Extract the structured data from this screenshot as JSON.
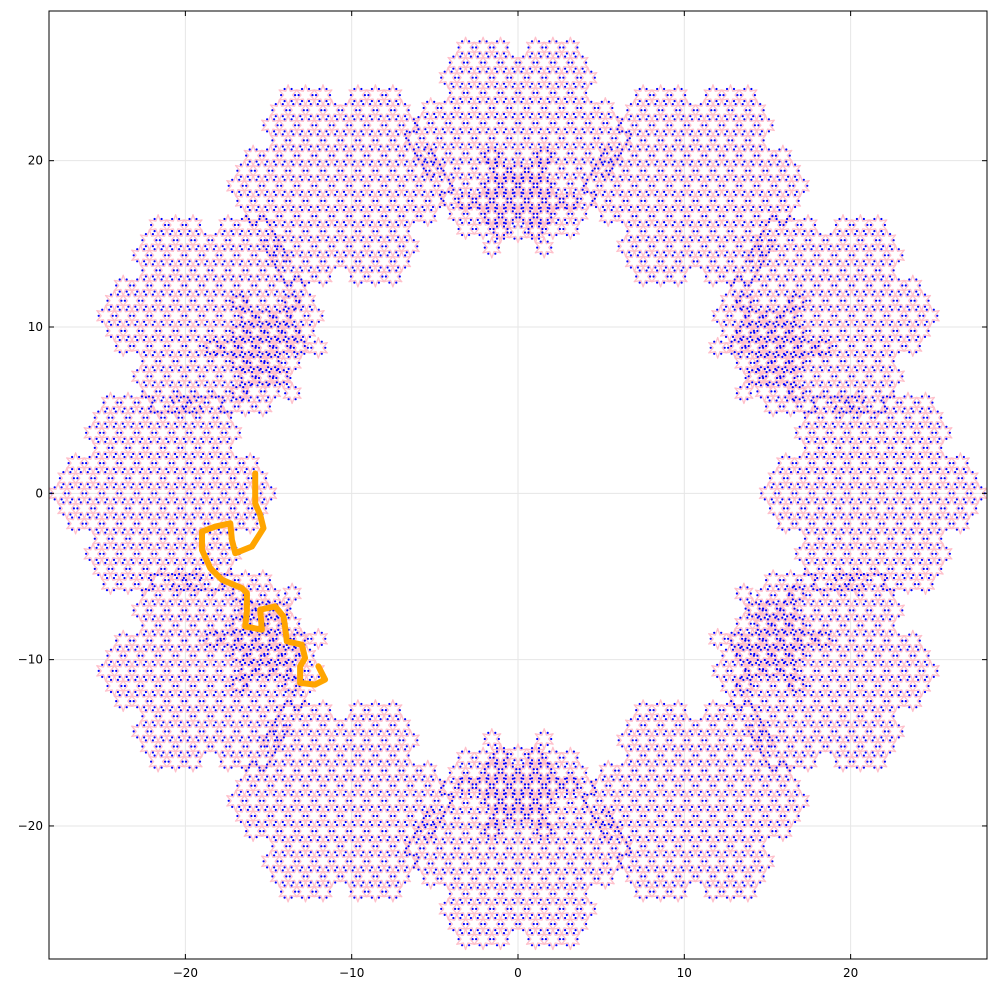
{
  "chart_data": {
    "type": "line",
    "title": "",
    "xlabel": "",
    "ylabel": "",
    "xlim": [
      -28.2,
      28.2
    ],
    "ylim": [
      -28.0,
      29.0
    ],
    "xticks": [
      {
        "value": -20,
        "label": "−20"
      },
      {
        "value": -10,
        "label": "−10"
      },
      {
        "value": 0,
        "label": "0"
      },
      {
        "value": 10,
        "label": "10"
      },
      {
        "value": 20,
        "label": "20"
      }
    ],
    "yticks": [
      {
        "value": 20,
        "label": "20"
      },
      {
        "value": 10,
        "label": "10"
      },
      {
        "value": 0,
        "label": "0"
      },
      {
        "value": -10,
        "label": "−10"
      },
      {
        "value": -20,
        "label": "−20"
      }
    ],
    "grid": true,
    "legend": "none",
    "colors": {
      "tiling_edges": "#ffc0cb",
      "tiling_vertices": "#0000ff",
      "walk": "#ffa500",
      "grid": "#e6e6e6"
    },
    "tiling": {
      "symmetry": 12,
      "ring_radius": 17.5,
      "patch_radius": 7.0,
      "small_patch_radius": 3.4,
      "star_spacing": 1.05
    },
    "series": [
      {
        "points": [
          [
            -15.8,
            1.2
          ],
          [
            -15.8,
            -0.6
          ],
          [
            -15.5,
            -1.3
          ],
          [
            -15.3,
            -2.1
          ],
          [
            -16.0,
            -3.2
          ],
          [
            -17.0,
            -3.6
          ],
          [
            -17.2,
            -2.8
          ],
          [
            -17.3,
            -1.8
          ],
          [
            -18.2,
            -2.0
          ],
          [
            -19.0,
            -2.3
          ],
          [
            -19.0,
            -3.4
          ],
          [
            -18.5,
            -4.5
          ],
          [
            -17.8,
            -5.2
          ],
          [
            -16.6,
            -5.7
          ],
          [
            -16.3,
            -6.0
          ],
          [
            -16.3,
            -7.1
          ],
          [
            -16.4,
            -8.0
          ],
          [
            -15.4,
            -8.2
          ],
          [
            -15.5,
            -7.0
          ],
          [
            -14.6,
            -6.8
          ],
          [
            -14.1,
            -7.4
          ],
          [
            -14.0,
            -8.1
          ],
          [
            -13.9,
            -8.9
          ],
          [
            -13.0,
            -9.1
          ],
          [
            -12.8,
            -9.9
          ],
          [
            -13.1,
            -10.4
          ],
          [
            -13.1,
            -11.4
          ],
          [
            -12.2,
            -11.5
          ],
          [
            -11.6,
            -11.2
          ],
          [
            -12.0,
            -10.4
          ]
        ]
      }
    ]
  }
}
